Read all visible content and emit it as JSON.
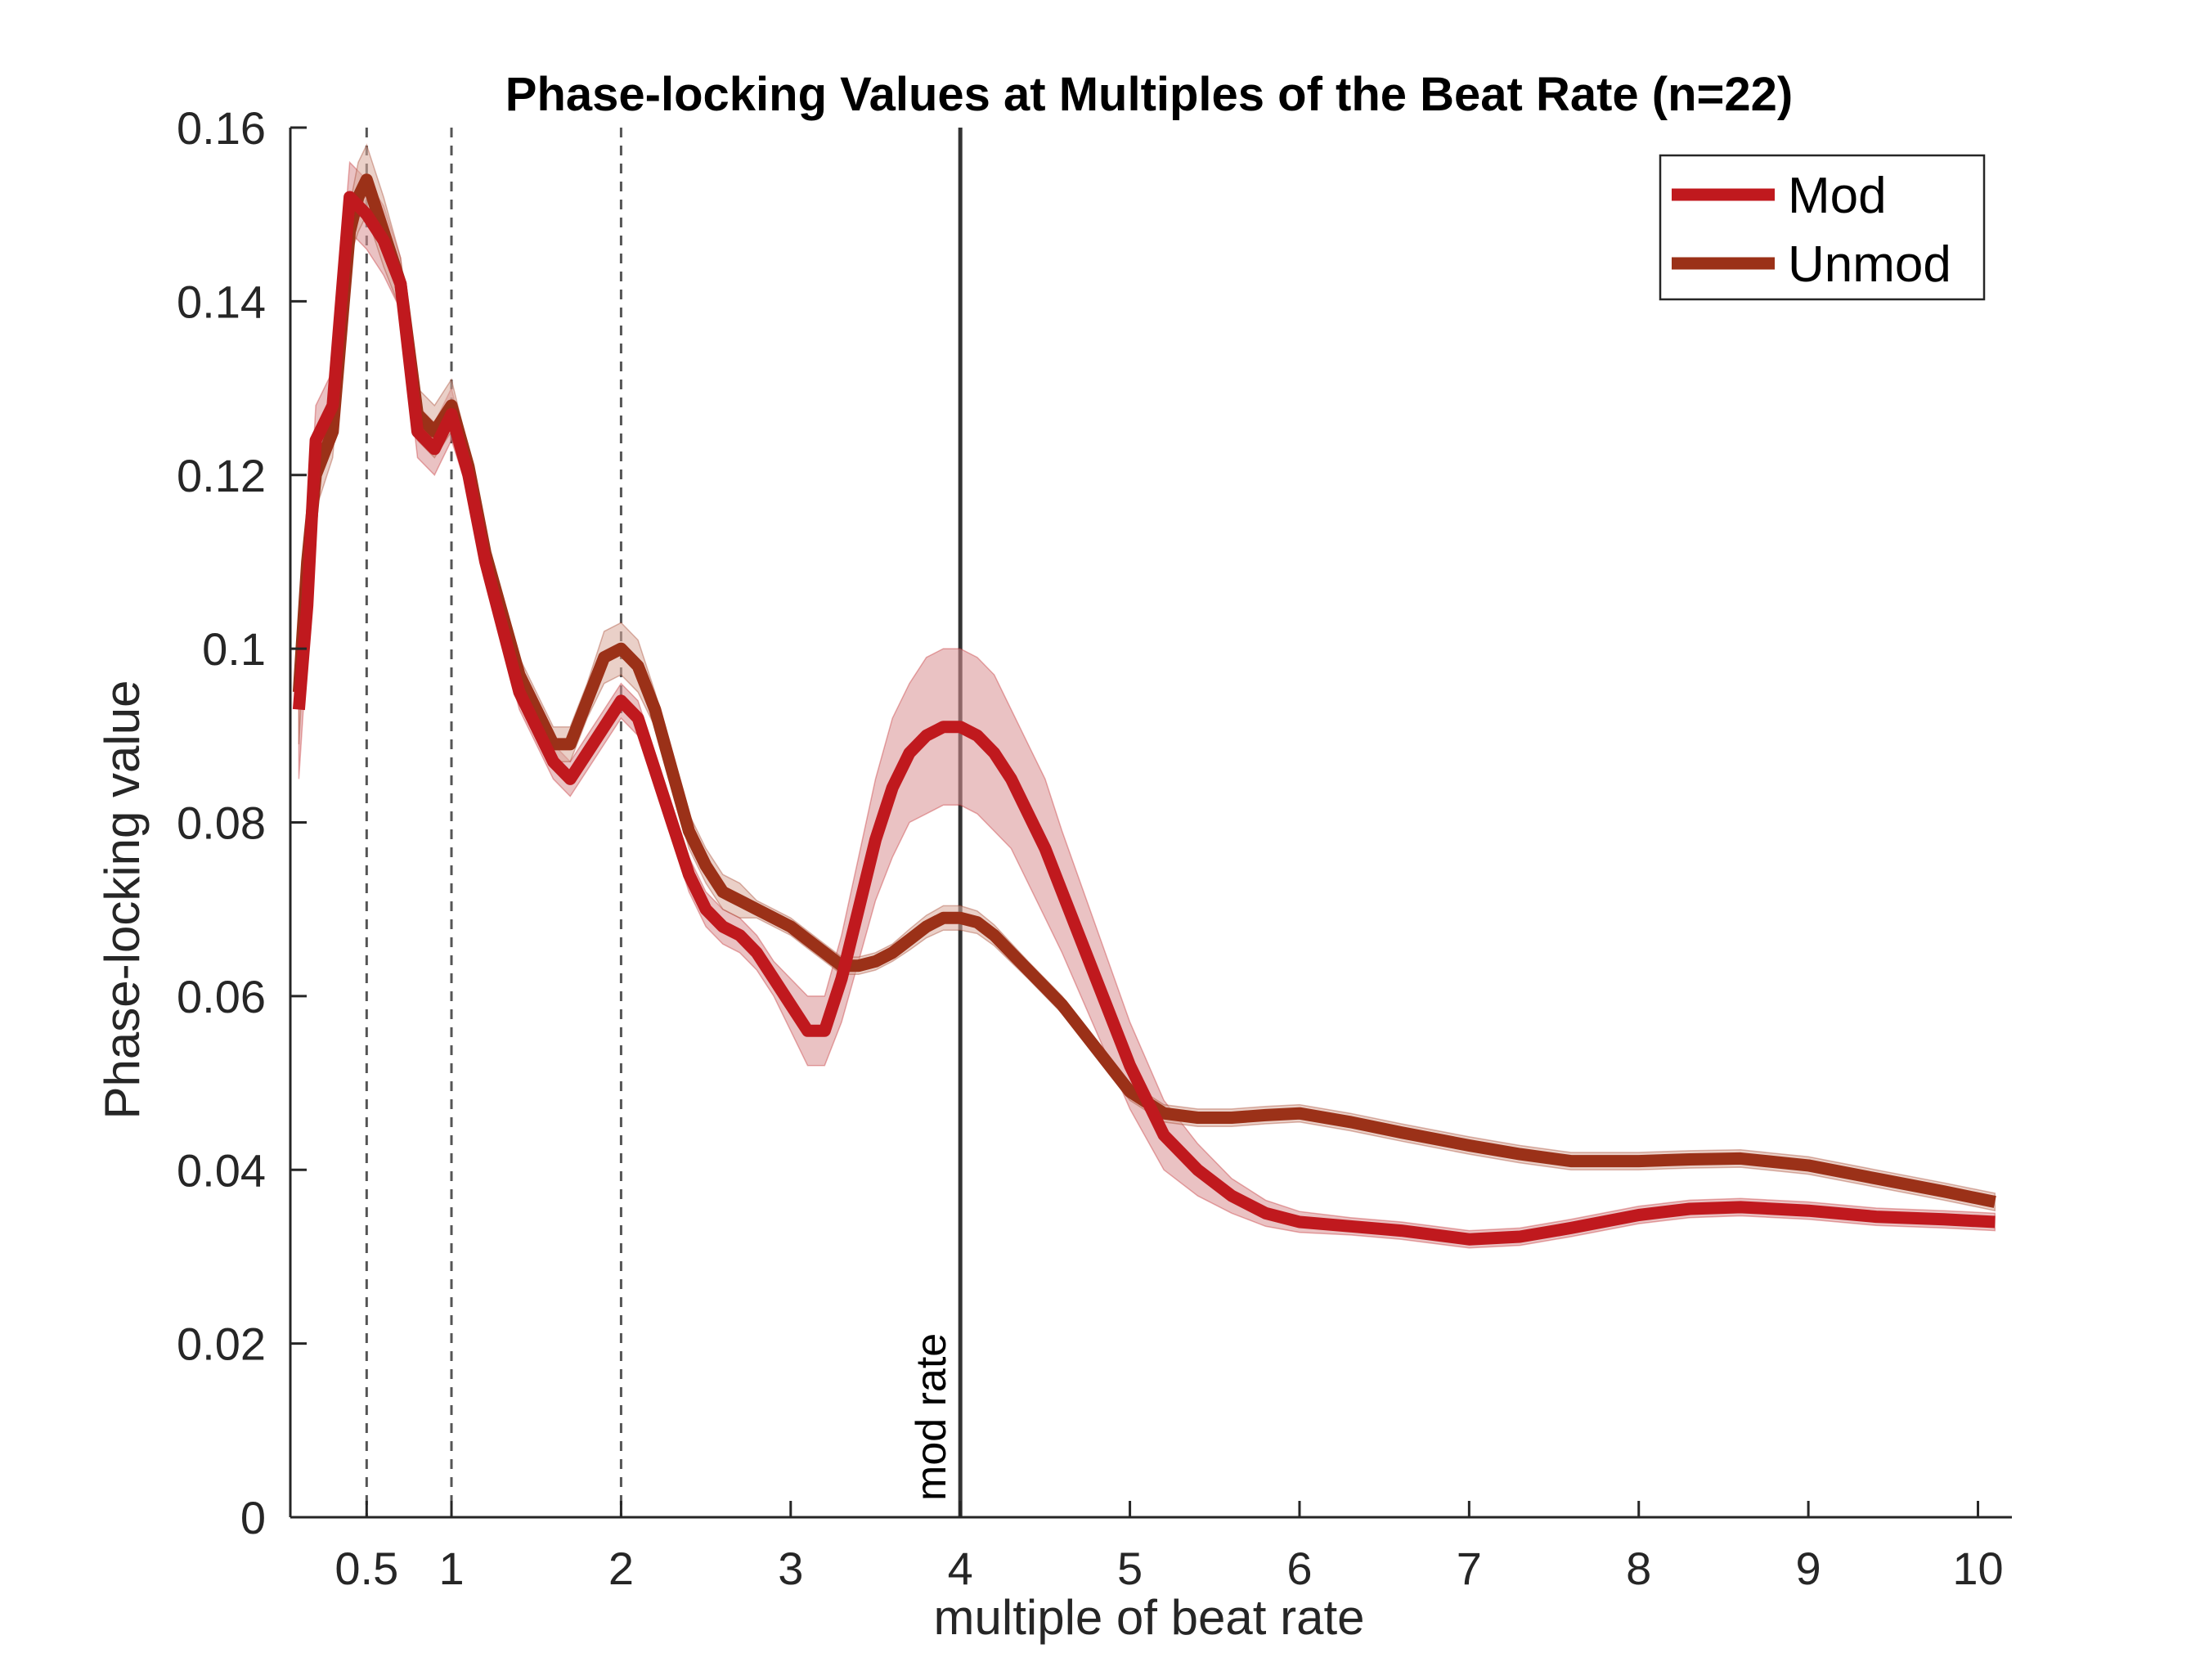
{
  "chart_data": {
    "type": "line",
    "title": "Phase-locking Values at Multiples of the Beat Rate (n=22)",
    "xlabel": "multiple of beat rate",
    "ylabel": "Phase-locking value",
    "xlim": [
      0.05,
      10.2
    ],
    "ylim": [
      0,
      0.16
    ],
    "xticks": [
      0.5,
      1,
      2,
      3,
      4,
      5,
      6,
      7,
      8,
      9,
      10
    ],
    "xtick_labels": [
      "0.5",
      "1",
      "2",
      "3",
      "4",
      "5",
      "6",
      "7",
      "8",
      "9",
      "10"
    ],
    "yticks": [
      0,
      0.02,
      0.04,
      0.06,
      0.08,
      0.1,
      0.12,
      0.14,
      0.16
    ],
    "ytick_labels": [
      "0",
      "0.02",
      "0.04",
      "0.06",
      "0.08",
      "0.1",
      "0.12",
      "0.14",
      "0.16"
    ],
    "grid": false,
    "legend_position": "top-right",
    "dashed_lines_x": [
      0.5,
      1,
      2
    ],
    "solid_line": {
      "x": 4,
      "label": "mod rate"
    },
    "series": [
      {
        "name": "Mod",
        "color": "#c0191e",
        "shade_color": "#d98f92",
        "x": [
          0.1,
          0.15,
          0.2,
          0.3,
          0.4,
          0.45,
          0.5,
          0.6,
          0.7,
          0.8,
          0.9,
          1.0,
          1.1,
          1.2,
          1.4,
          1.6,
          1.7,
          1.8,
          1.9,
          2.0,
          2.1,
          2.2,
          2.3,
          2.4,
          2.5,
          2.6,
          2.7,
          2.8,
          2.9,
          3.0,
          3.1,
          3.2,
          3.3,
          3.4,
          3.5,
          3.6,
          3.7,
          3.8,
          3.9,
          4.0,
          4.1,
          4.2,
          4.3,
          4.4,
          4.5,
          4.6,
          4.8,
          5.0,
          5.2,
          5.4,
          5.6,
          5.8,
          6.0,
          6.3,
          6.6,
          7.0,
          7.3,
          7.6,
          8.0,
          8.3,
          8.6,
          9.0,
          9.4,
          9.8,
          10.1
        ],
        "values": [
          0.093,
          0.105,
          0.124,
          0.128,
          0.152,
          0.151,
          0.15,
          0.147,
          0.142,
          0.125,
          0.123,
          0.127,
          0.12,
          0.11,
          0.095,
          0.087,
          0.085,
          0.088,
          0.091,
          0.094,
          0.092,
          0.086,
          0.08,
          0.074,
          0.07,
          0.068,
          0.067,
          0.065,
          0.062,
          0.059,
          0.056,
          0.056,
          0.062,
          0.07,
          0.078,
          0.084,
          0.088,
          0.09,
          0.091,
          0.091,
          0.09,
          0.088,
          0.085,
          0.081,
          0.077,
          0.072,
          0.062,
          0.052,
          0.044,
          0.04,
          0.037,
          0.035,
          0.034,
          0.0335,
          0.033,
          0.032,
          0.0323,
          0.0333,
          0.0348,
          0.0355,
          0.0357,
          0.0353,
          0.0346,
          0.0343,
          0.034
        ],
        "ci_halfwidth": [
          0.008,
          0.005,
          0.004,
          0.004,
          0.004,
          0.004,
          0.004,
          0.004,
          0.003,
          0.003,
          0.003,
          0.003,
          0.002,
          0.002,
          0.002,
          0.002,
          0.002,
          0.002,
          0.002,
          0.002,
          0.002,
          0.002,
          0.002,
          0.002,
          0.002,
          0.002,
          0.002,
          0.002,
          0.002,
          0.003,
          0.004,
          0.004,
          0.005,
          0.006,
          0.007,
          0.008,
          0.008,
          0.009,
          0.009,
          0.009,
          0.009,
          0.009,
          0.008,
          0.008,
          0.008,
          0.007,
          0.006,
          0.005,
          0.004,
          0.003,
          0.002,
          0.0015,
          0.0012,
          0.001,
          0.001,
          0.001,
          0.001,
          0.001,
          0.001,
          0.001,
          0.001,
          0.001,
          0.001,
          0.001,
          0.001
        ]
      },
      {
        "name": "Unmod",
        "color": "#9b3118",
        "shade_color": "#d8a99a",
        "x": [
          0.1,
          0.15,
          0.2,
          0.3,
          0.4,
          0.45,
          0.5,
          0.6,
          0.7,
          0.8,
          0.9,
          1.0,
          1.1,
          1.2,
          1.4,
          1.6,
          1.7,
          1.8,
          1.9,
          2.0,
          2.1,
          2.2,
          2.3,
          2.4,
          2.5,
          2.6,
          2.7,
          2.8,
          2.9,
          3.0,
          3.1,
          3.2,
          3.3,
          3.4,
          3.5,
          3.6,
          3.7,
          3.8,
          3.9,
          4.0,
          4.1,
          4.2,
          4.3,
          4.4,
          4.5,
          4.6,
          4.8,
          5.0,
          5.2,
          5.4,
          5.6,
          5.8,
          6.0,
          6.3,
          6.6,
          7.0,
          7.3,
          7.6,
          8.0,
          8.3,
          8.6,
          9.0,
          9.4,
          9.8,
          10.1
        ],
        "values": [
          0.095,
          0.11,
          0.12,
          0.125,
          0.148,
          0.152,
          0.154,
          0.148,
          0.142,
          0.127,
          0.125,
          0.128,
          0.121,
          0.111,
          0.097,
          0.089,
          0.089,
          0.094,
          0.099,
          0.1,
          0.098,
          0.093,
          0.086,
          0.079,
          0.075,
          0.072,
          0.071,
          0.07,
          0.069,
          0.068,
          0.0665,
          0.065,
          0.0635,
          0.0635,
          0.064,
          0.065,
          0.0665,
          0.068,
          0.069,
          0.069,
          0.0685,
          0.067,
          0.065,
          0.063,
          0.061,
          0.059,
          0.054,
          0.049,
          0.0465,
          0.046,
          0.046,
          0.0463,
          0.0465,
          0.0455,
          0.0443,
          0.0428,
          0.0418,
          0.041,
          0.041,
          0.0412,
          0.0413,
          0.0405,
          0.039,
          0.0375,
          0.0363
        ],
        "ci_halfwidth": [
          0.006,
          0.004,
          0.004,
          0.003,
          0.003,
          0.004,
          0.004,
          0.004,
          0.003,
          0.003,
          0.003,
          0.003,
          0.002,
          0.002,
          0.002,
          0.002,
          0.002,
          0.002,
          0.003,
          0.003,
          0.003,
          0.002,
          0.002,
          0.002,
          0.002,
          0.002,
          0.002,
          0.001,
          0.001,
          0.001,
          0.001,
          0.001,
          0.001,
          0.001,
          0.001,
          0.001,
          0.0012,
          0.0013,
          0.0014,
          0.0014,
          0.0013,
          0.0012,
          0.0011,
          0.001,
          0.001,
          0.001,
          0.001,
          0.001,
          0.001,
          0.001,
          0.001,
          0.001,
          0.001,
          0.001,
          0.001,
          0.001,
          0.001,
          0.001,
          0.001,
          0.001,
          0.001,
          0.001,
          0.001,
          0.001,
          0.001
        ]
      }
    ]
  }
}
